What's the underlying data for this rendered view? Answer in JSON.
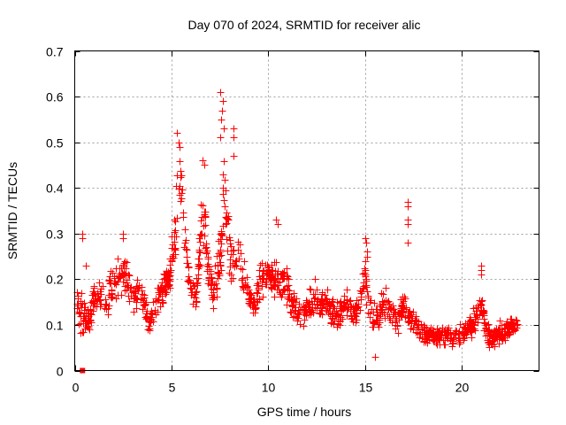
{
  "chart_data": {
    "type": "scatter",
    "title": "Day 070 of 2024, SRMTID for receiver alic",
    "xlabel": "GPS time / hours",
    "ylabel": "SRMTID / TECUs",
    "xlim": [
      0,
      24
    ],
    "ylim": [
      0,
      0.7
    ],
    "xticks": [
      0,
      5,
      10,
      15,
      20
    ],
    "xtick_labels": [
      "0",
      "5",
      "10",
      "15",
      "20"
    ],
    "yticks": [
      0,
      0.1,
      0.2,
      0.3,
      0.4,
      0.5,
      0.6,
      0.7
    ],
    "ytick_labels": [
      "0",
      "0.1",
      "0.2",
      "0.3",
      "0.4",
      "0.5",
      "0.6",
      "0.7"
    ],
    "grid": true,
    "legend": "none",
    "marker": "plus",
    "color": "#ff0000",
    "series": [
      {
        "name": "SRMTID",
        "envelope_hours": [
          0.0,
          0.3,
          0.5,
          0.7,
          1.0,
          1.3,
          1.6,
          2.0,
          2.3,
          2.5,
          2.7,
          3.0,
          3.3,
          3.6,
          3.8,
          4.0,
          4.3,
          4.6,
          4.9,
          5.1,
          5.3,
          5.5,
          5.7,
          5.9,
          6.1,
          6.3,
          6.5,
          6.7,
          6.9,
          7.1,
          7.3,
          7.5,
          7.7,
          7.9,
          8.1,
          8.3,
          8.5,
          8.7,
          9.0,
          9.3,
          9.6,
          10.0,
          10.3,
          10.6,
          10.9,
          11.2,
          11.5,
          11.8,
          12.1,
          12.4,
          12.7,
          13.0,
          13.3,
          13.6,
          13.9,
          14.2,
          14.5,
          14.8,
          15.0,
          15.2,
          15.5,
          15.8,
          16.1,
          16.4,
          16.7,
          17.0,
          17.2,
          17.5,
          17.8,
          18.1,
          18.4,
          18.7,
          19.0,
          19.3,
          19.6,
          19.9,
          20.2,
          20.5,
          20.8,
          21.0,
          21.2,
          21.5,
          21.8,
          22.1,
          22.4,
          22.7,
          22.9
        ],
        "envelope_center": [
          0.15,
          0.13,
          0.12,
          0.11,
          0.16,
          0.17,
          0.14,
          0.19,
          0.2,
          0.22,
          0.19,
          0.16,
          0.18,
          0.15,
          0.1,
          0.12,
          0.16,
          0.18,
          0.2,
          0.28,
          0.4,
          0.42,
          0.3,
          0.2,
          0.16,
          0.18,
          0.3,
          0.34,
          0.22,
          0.18,
          0.2,
          0.24,
          0.38,
          0.32,
          0.22,
          0.24,
          0.26,
          0.2,
          0.16,
          0.14,
          0.2,
          0.22,
          0.2,
          0.19,
          0.2,
          0.15,
          0.13,
          0.12,
          0.14,
          0.16,
          0.14,
          0.15,
          0.13,
          0.12,
          0.15,
          0.14,
          0.13,
          0.16,
          0.22,
          0.14,
          0.11,
          0.13,
          0.15,
          0.12,
          0.11,
          0.16,
          0.12,
          0.11,
          0.09,
          0.08,
          0.08,
          0.07,
          0.08,
          0.08,
          0.07,
          0.08,
          0.09,
          0.1,
          0.12,
          0.16,
          0.09,
          0.07,
          0.08,
          0.08,
          0.09,
          0.1,
          0.1
        ],
        "envelope_spread": [
          0.05,
          0.06,
          0.05,
          0.04,
          0.05,
          0.05,
          0.05,
          0.05,
          0.05,
          0.05,
          0.05,
          0.05,
          0.05,
          0.05,
          0.03,
          0.04,
          0.05,
          0.05,
          0.05,
          0.08,
          0.1,
          0.09,
          0.07,
          0.05,
          0.05,
          0.05,
          0.07,
          0.08,
          0.06,
          0.05,
          0.06,
          0.07,
          0.11,
          0.1,
          0.06,
          0.06,
          0.06,
          0.05,
          0.05,
          0.04,
          0.05,
          0.06,
          0.05,
          0.05,
          0.05,
          0.04,
          0.04,
          0.04,
          0.04,
          0.05,
          0.04,
          0.04,
          0.04,
          0.04,
          0.04,
          0.04,
          0.04,
          0.05,
          0.05,
          0.04,
          0.04,
          0.04,
          0.05,
          0.04,
          0.04,
          0.05,
          0.04,
          0.03,
          0.03,
          0.03,
          0.03,
          0.03,
          0.03,
          0.03,
          0.03,
          0.03,
          0.03,
          0.03,
          0.04,
          0.04,
          0.03,
          0.03,
          0.03,
          0.03,
          0.03,
          0.03,
          0.03
        ],
        "notable_points": [
          [
            0.4,
            0.3
          ],
          [
            0.4,
            0.29
          ],
          [
            0.55,
            0.23
          ],
          [
            2.5,
            0.3
          ],
          [
            2.5,
            0.29
          ],
          [
            5.3,
            0.52
          ],
          [
            5.35,
            0.5
          ],
          [
            5.4,
            0.49
          ],
          [
            6.6,
            0.46
          ],
          [
            6.7,
            0.45
          ],
          [
            7.5,
            0.61
          ],
          [
            7.65,
            0.59
          ],
          [
            7.6,
            0.57
          ],
          [
            7.55,
            0.55
          ],
          [
            7.7,
            0.53
          ],
          [
            7.5,
            0.51
          ],
          [
            8.2,
            0.53
          ],
          [
            8.2,
            0.51
          ],
          [
            8.2,
            0.47
          ],
          [
            10.4,
            0.33
          ],
          [
            10.5,
            0.32
          ],
          [
            15.0,
            0.29
          ],
          [
            15.05,
            0.28
          ],
          [
            15.1,
            0.26
          ],
          [
            15.1,
            0.25
          ],
          [
            15.5,
            0.03
          ],
          [
            17.2,
            0.37
          ],
          [
            17.2,
            0.36
          ],
          [
            17.2,
            0.33
          ],
          [
            17.2,
            0.32
          ],
          [
            17.2,
            0.28
          ],
          [
            21.0,
            0.23
          ],
          [
            21.0,
            0.22
          ],
          [
            21.0,
            0.21
          ]
        ],
        "zero_points": [
          [
            0.4,
            0.0
          ]
        ],
        "time_range_hours": [
          0.0,
          22.9
        ]
      }
    ]
  }
}
